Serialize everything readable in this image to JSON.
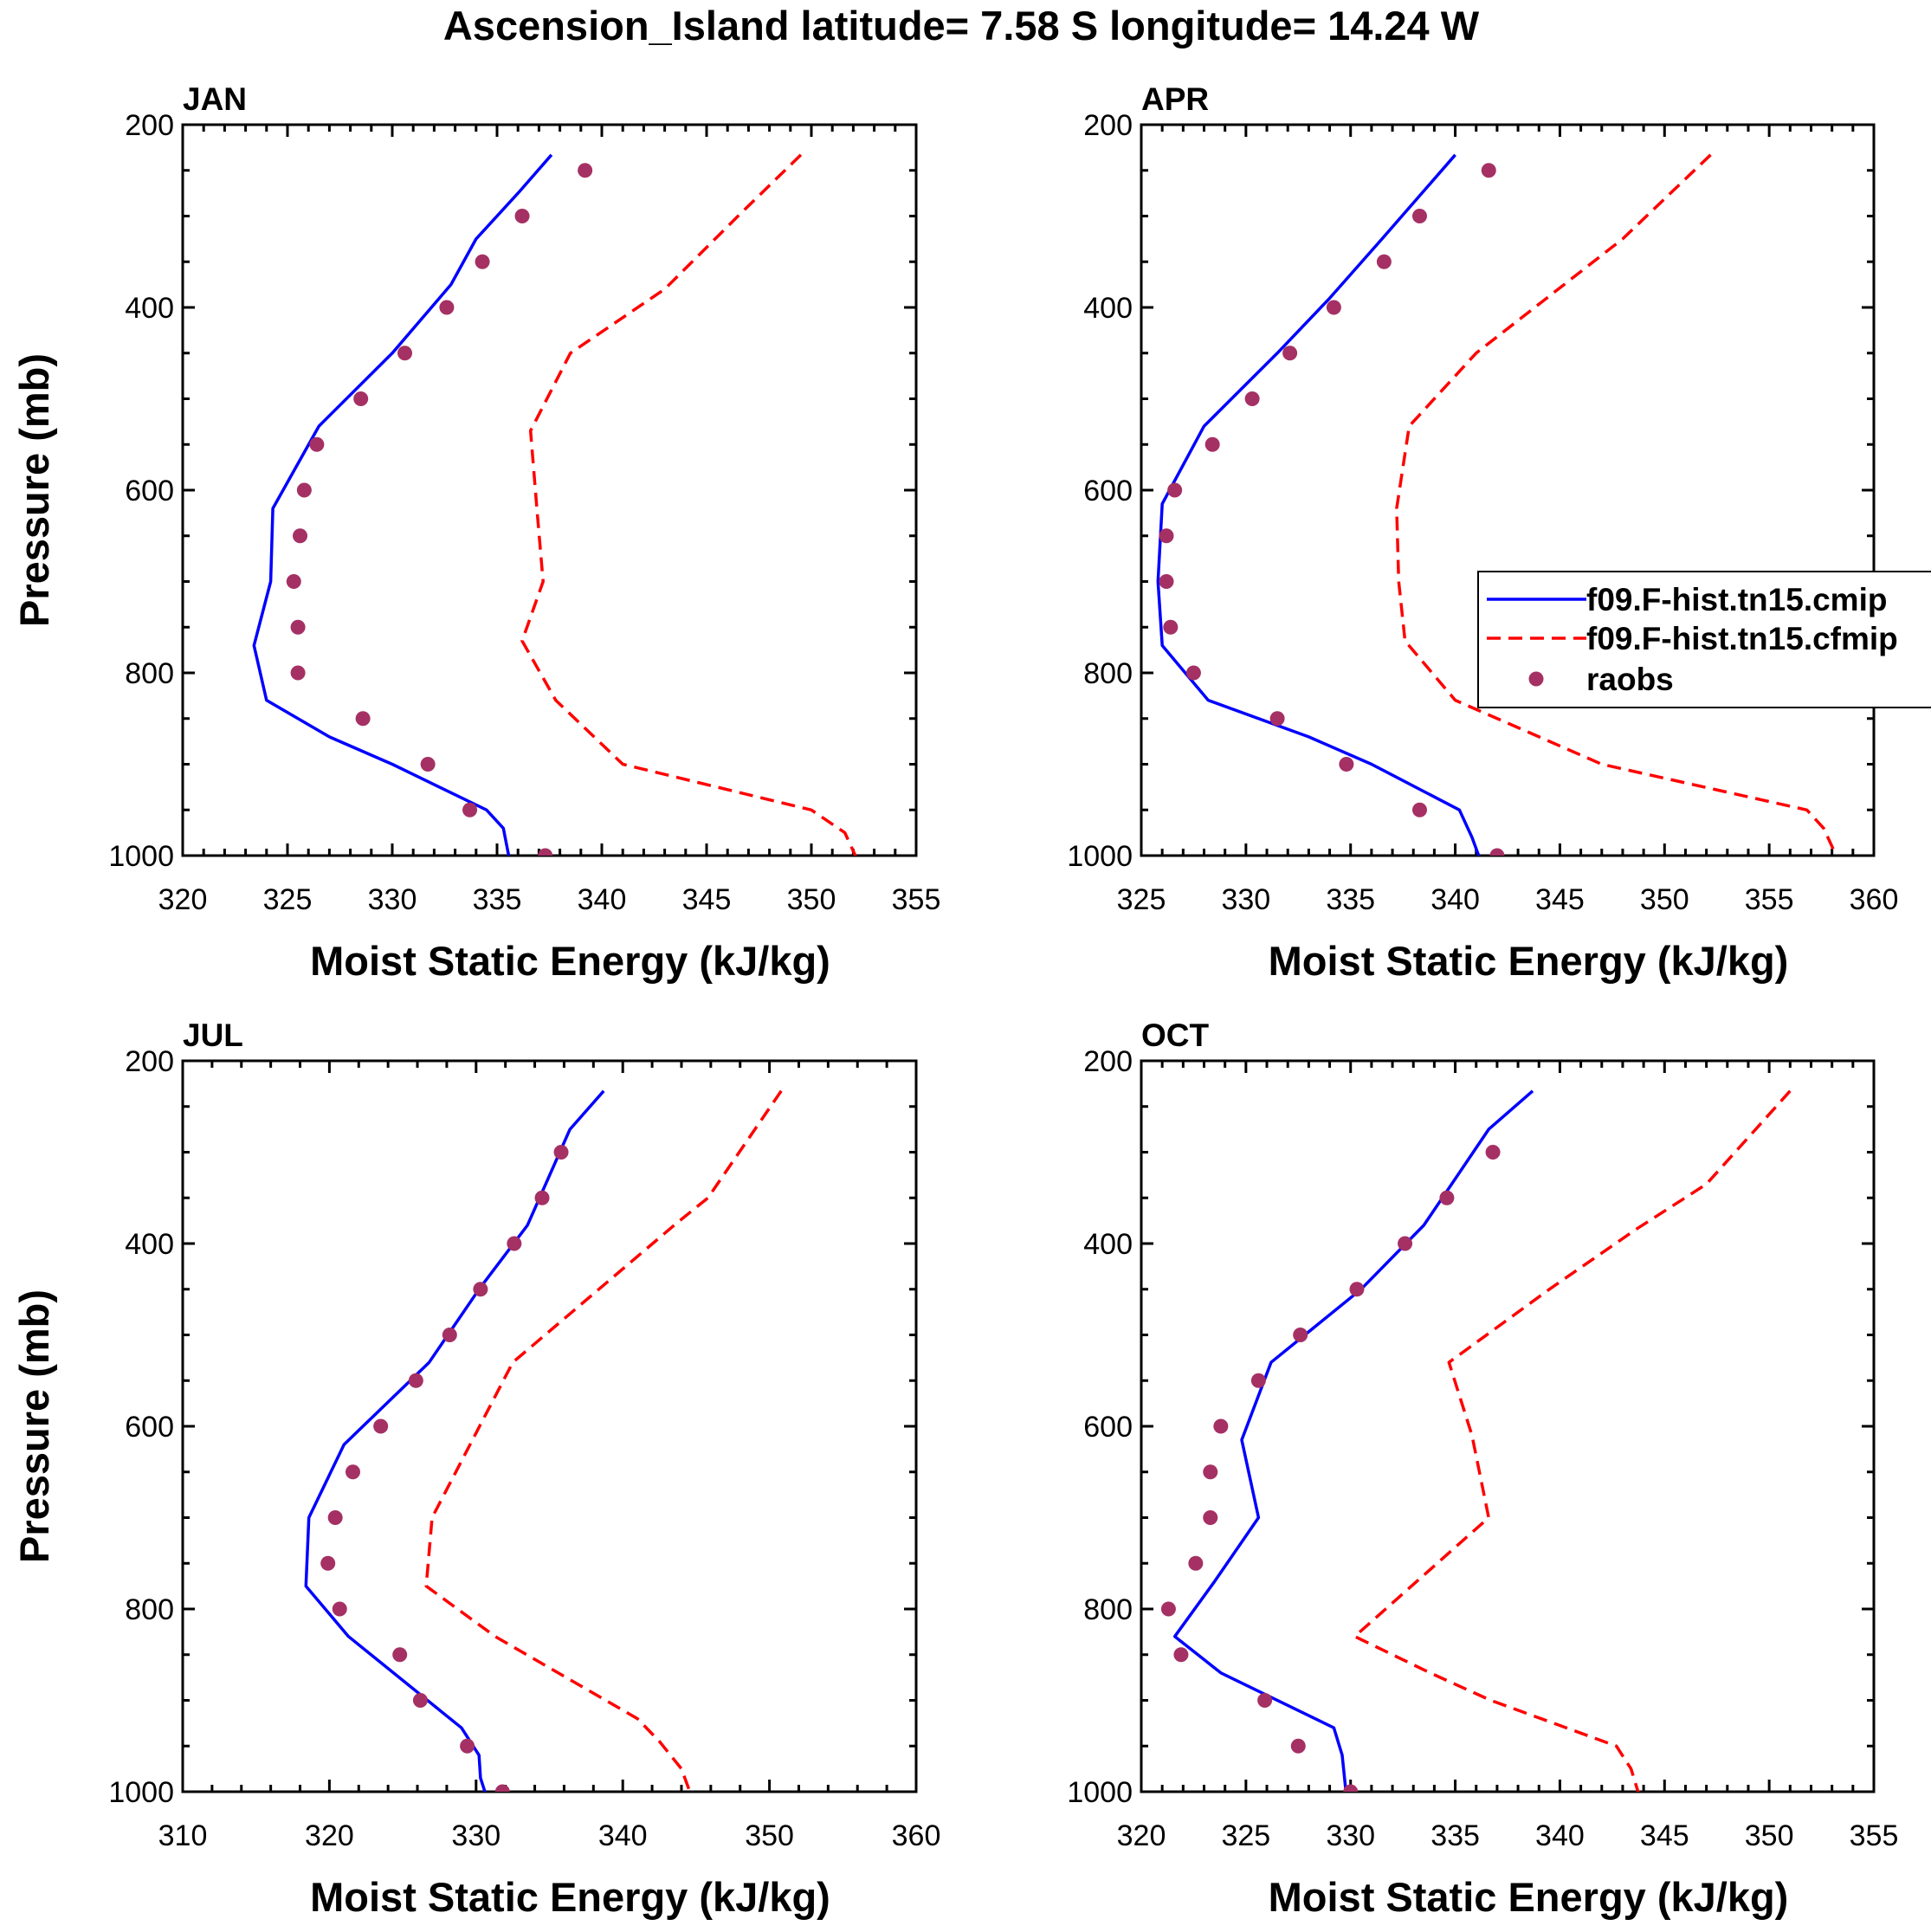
{
  "figure": {
    "title": "Ascension_Island  latitude= 7.58 S longitude= 14.24 W"
  },
  "legend": {
    "entries": [
      {
        "label": "f09.F-hist.tn15.cmip",
        "style": "solid",
        "color": "#0000ff"
      },
      {
        "label": "f09.F-hist.tn15.cfmip",
        "style": "dashed",
        "color": "#ff0000"
      },
      {
        "label": "raobs",
        "style": "marker",
        "color": "#a53064"
      }
    ]
  },
  "colors": {
    "model1": "#0000ff",
    "model2": "#ff0000",
    "obs": "#a53064"
  },
  "chart_data": [
    {
      "type": "line",
      "title": "JAN",
      "xlabel": "Moist Static Energy (kJ/kg)",
      "ylabel": "Pressure (mb)",
      "xlim": [
        320,
        355
      ],
      "ylim": [
        1000,
        200
      ],
      "y_reversed": true,
      "xticks": [
        320,
        325,
        330,
        335,
        340,
        345,
        350,
        355
      ],
      "yticks": [
        200,
        400,
        600,
        800,
        1000
      ],
      "series": [
        {
          "name": "f09.F-hist.tn15.cmip",
          "style": "solid",
          "pressure": [
            233,
            275,
            325,
            375,
            450,
            530,
            620,
            700,
            770,
            830,
            870,
            900,
            950,
            970,
            1005
          ],
          "mse": [
            337.6,
            336.0,
            334.0,
            332.8,
            330.0,
            326.5,
            324.3,
            324.2,
            323.4,
            324.0,
            327.0,
            330.0,
            334.5,
            335.3,
            335.6
          ]
        },
        {
          "name": "f09.F-hist.tn15.cfmip",
          "style": "dashed",
          "pressure": [
            233,
            300,
            380,
            450,
            535,
            620,
            700,
            765,
            830,
            900,
            950,
            975,
            1005
          ],
          "mse": [
            349.5,
            346.5,
            343.0,
            338.5,
            336.6,
            336.9,
            337.2,
            336.2,
            337.8,
            341.0,
            350.0,
            351.6,
            352.2
          ]
        },
        {
          "name": "raobs",
          "style": "marker",
          "pressure": [
            250,
            300,
            350,
            400,
            450,
            500,
            550,
            600,
            650,
            700,
            750,
            800,
            850,
            900,
            950,
            1000
          ],
          "mse": [
            339.2,
            336.2,
            334.3,
            332.6,
            330.6,
            328.5,
            326.4,
            325.8,
            325.6,
            325.3,
            325.5,
            325.5,
            328.6,
            331.7,
            333.7,
            337.3
          ]
        }
      ]
    },
    {
      "type": "line",
      "title": "APR",
      "xlabel": "Moist Static Energy (kJ/kg)",
      "ylabel": "",
      "xlim": [
        325,
        360
      ],
      "ylim": [
        1000,
        200
      ],
      "y_reversed": true,
      "xticks": [
        325,
        330,
        335,
        340,
        345,
        350,
        355,
        360
      ],
      "yticks": [
        200,
        400,
        600,
        800,
        1000
      ],
      "series": [
        {
          "name": "f09.F-hist.tn15.cmip",
          "style": "solid",
          "pressure": [
            233,
            325,
            390,
            450,
            530,
            615,
            700,
            770,
            830,
            870,
            900,
            950,
            980,
            1005
          ],
          "mse": [
            340.0,
            336.5,
            334.0,
            331.5,
            328.0,
            326.0,
            325.8,
            326.0,
            328.2,
            333.0,
            336.0,
            340.2,
            340.8,
            341.2
          ]
        },
        {
          "name": "f09.F-hist.tn15.cfmip",
          "style": "dashed",
          "pressure": [
            233,
            325,
            450,
            530,
            620,
            700,
            765,
            830,
            900,
            950,
            970,
            1000
          ],
          "mse": [
            352.2,
            348.0,
            341.0,
            337.8,
            337.2,
            337.3,
            337.6,
            340.0,
            347.0,
            356.8,
            357.6,
            358.2
          ]
        },
        {
          "name": "raobs",
          "style": "marker",
          "pressure": [
            250,
            300,
            350,
            400,
            450,
            500,
            550,
            600,
            650,
            700,
            750,
            800,
            850,
            900,
            950,
            1000
          ],
          "mse": [
            341.6,
            338.3,
            336.6,
            334.2,
            332.1,
            330.3,
            328.4,
            326.6,
            326.2,
            326.2,
            326.4,
            327.5,
            331.5,
            334.8,
            338.3,
            342.0
          ]
        }
      ]
    },
    {
      "type": "line",
      "title": "JUL",
      "xlabel": "Moist Static Energy (kJ/kg)",
      "ylabel": "Pressure (mb)",
      "xlim": [
        310,
        360
      ],
      "ylim": [
        1000,
        200
      ],
      "y_reversed": true,
      "xticks": [
        310,
        320,
        330,
        340,
        350,
        360
      ],
      "yticks": [
        200,
        400,
        600,
        800,
        1000
      ],
      "series": [
        {
          "name": "f09.F-hist.tn15.cmip",
          "style": "solid",
          "pressure": [
            233,
            275,
            380,
            450,
            530,
            620,
            700,
            775,
            830,
            930,
            960,
            985,
            1010
          ],
          "mse": [
            338.7,
            336.4,
            333.5,
            330.2,
            326.8,
            321.0,
            318.6,
            318.4,
            321.3,
            329.0,
            330.2,
            330.3,
            330.8
          ]
        },
        {
          "name": "f09.F-hist.tn15.cfmip",
          "style": "dashed",
          "pressure": [
            233,
            350,
            380,
            530,
            700,
            775,
            830,
            920,
            945,
            975,
            1010
          ],
          "mse": [
            350.8,
            345.8,
            343.5,
            332.5,
            327.0,
            326.6,
            331.3,
            341.0,
            342.5,
            344.0,
            344.8
          ]
        },
        {
          "name": "raobs",
          "style": "marker",
          "pressure": [
            300,
            350,
            400,
            450,
            500,
            550,
            600,
            650,
            700,
            750,
            800,
            850,
            900,
            950,
            1000
          ],
          "mse": [
            335.8,
            334.5,
            332.6,
            330.3,
            328.2,
            325.9,
            323.5,
            321.6,
            320.4,
            319.9,
            320.7,
            324.8,
            326.2,
            329.4,
            331.8
          ]
        }
      ]
    },
    {
      "type": "line",
      "title": "OCT",
      "xlabel": "Moist Static Energy (kJ/kg)",
      "ylabel": "",
      "xlim": [
        320,
        355
      ],
      "ylim": [
        1000,
        200
      ],
      "y_reversed": true,
      "xticks": [
        320,
        325,
        330,
        335,
        340,
        345,
        350,
        355
      ],
      "yticks": [
        200,
        400,
        600,
        800,
        1000
      ],
      "series": [
        {
          "name": "f09.F-hist.tn15.cmip",
          "style": "solid",
          "pressure": [
            233,
            275,
            380,
            450,
            530,
            615,
            700,
            770,
            830,
            870,
            930,
            960,
            1005
          ],
          "mse": [
            338.7,
            336.6,
            333.5,
            330.5,
            326.2,
            324.8,
            325.6,
            323.5,
            321.6,
            323.8,
            329.2,
            329.6,
            329.8
          ]
        },
        {
          "name": "f09.F-hist.tn15.cfmip",
          "style": "dashed",
          "pressure": [
            233,
            335,
            385,
            450,
            530,
            610,
            700,
            830,
            870,
            900,
            950,
            975,
            1005
          ],
          "mse": [
            351.0,
            347.0,
            343.6,
            339.5,
            334.7,
            335.8,
            336.6,
            330.2,
            333.8,
            336.7,
            342.7,
            343.4,
            343.8
          ]
        },
        {
          "name": "raobs",
          "style": "marker",
          "pressure": [
            300,
            350,
            400,
            450,
            500,
            550,
            600,
            650,
            700,
            750,
            800,
            850,
            900,
            950,
            1000
          ],
          "mse": [
            336.8,
            334.6,
            332.6,
            330.3,
            327.6,
            325.6,
            323.8,
            323.3,
            323.3,
            322.6,
            321.3,
            321.9,
            325.9,
            327.5,
            330.0
          ]
        }
      ]
    }
  ]
}
